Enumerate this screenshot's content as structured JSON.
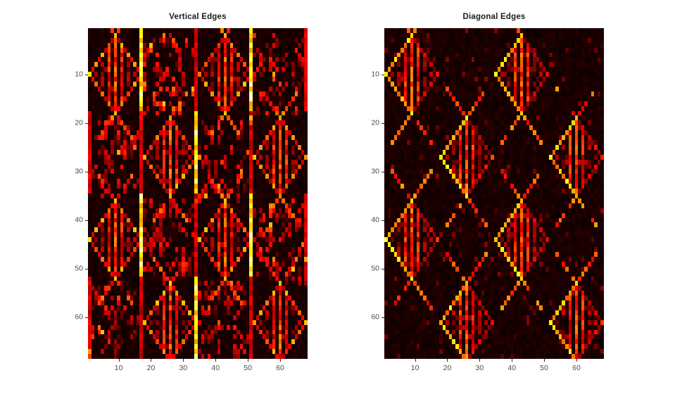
{
  "figure": {
    "background": "#ffffff",
    "colors": {
      "title_text": "#1c1c1c",
      "tick_labels": "#4d4d4d",
      "tick_marks": "#262626"
    }
  },
  "chart_data": [
    {
      "type": "heatmap",
      "title": "Vertical Edges",
      "xlabel": "",
      "ylabel": "",
      "x_ticks": [
        10,
        20,
        30,
        40,
        50,
        60
      ],
      "y_ticks": [
        10,
        20,
        30,
        40,
        50,
        60
      ],
      "xlim": [
        0.5,
        68.5
      ],
      "ylim": [
        0.5,
        68.5
      ],
      "y_direction": "reverse",
      "grid": 68,
      "colormap": "hot",
      "legend": "none",
      "pattern": {
        "style": "vertical",
        "seed": 7,
        "block_size": 17,
        "diamond_radius": 8,
        "diamond_centers": [
          [
            9,
            8
          ],
          [
            9,
            42
          ],
          [
            43,
            8
          ],
          [
            43,
            42
          ],
          [
            26,
            25
          ],
          [
            26,
            59
          ],
          [
            60,
            25
          ],
          [
            60,
            59
          ]
        ],
        "dot_block_centers": [
          [
            9,
            25
          ],
          [
            9,
            59
          ],
          [
            43,
            25
          ],
          [
            43,
            59
          ],
          [
            26,
            8
          ],
          [
            26,
            42
          ],
          [
            60,
            8
          ],
          [
            60,
            42
          ]
        ],
        "edge_lines": [
          {
            "col": 0,
            "bright_bands": [],
            "dim_bands": [
              1,
              3
            ]
          },
          {
            "col": 16,
            "bright_bands": [
              0,
              2
            ],
            "dim_bands": [
              1,
              3
            ]
          },
          {
            "col": 33,
            "bright_bands": [
              1,
              3
            ],
            "dim_bands": [
              0,
              2
            ]
          },
          {
            "col": 50,
            "bright_bands": [
              0,
              2
            ],
            "dim_bands": [
              1,
              3
            ]
          },
          {
            "col": 67,
            "bright_bands": [],
            "dim_bands": [
              0,
              2
            ]
          }
        ]
      }
    },
    {
      "type": "heatmap",
      "title": "Diagonal Edges",
      "xlabel": "",
      "ylabel": "",
      "x_ticks": [
        10,
        20,
        30,
        40,
        50,
        60
      ],
      "y_ticks": [
        10,
        20,
        30,
        40,
        50,
        60
      ],
      "xlim": [
        0.5,
        68.5
      ],
      "ylim": [
        0.5,
        68.5
      ],
      "y_direction": "reverse",
      "grid": 68,
      "colormap": "hot",
      "legend": "none",
      "pattern": {
        "style": "diagonal",
        "seed": 13,
        "block_size": 17,
        "diamond_radius": 8,
        "diamond_centers": [
          [
            9,
            8
          ],
          [
            9,
            42
          ],
          [
            43,
            8
          ],
          [
            43,
            42
          ],
          [
            26,
            25
          ],
          [
            26,
            59
          ],
          [
            26,
            76
          ],
          [
            60,
            25
          ],
          [
            60,
            59
          ],
          [
            60,
            76
          ]
        ],
        "dot_block_centers": [],
        "edge_lines": []
      }
    }
  ]
}
